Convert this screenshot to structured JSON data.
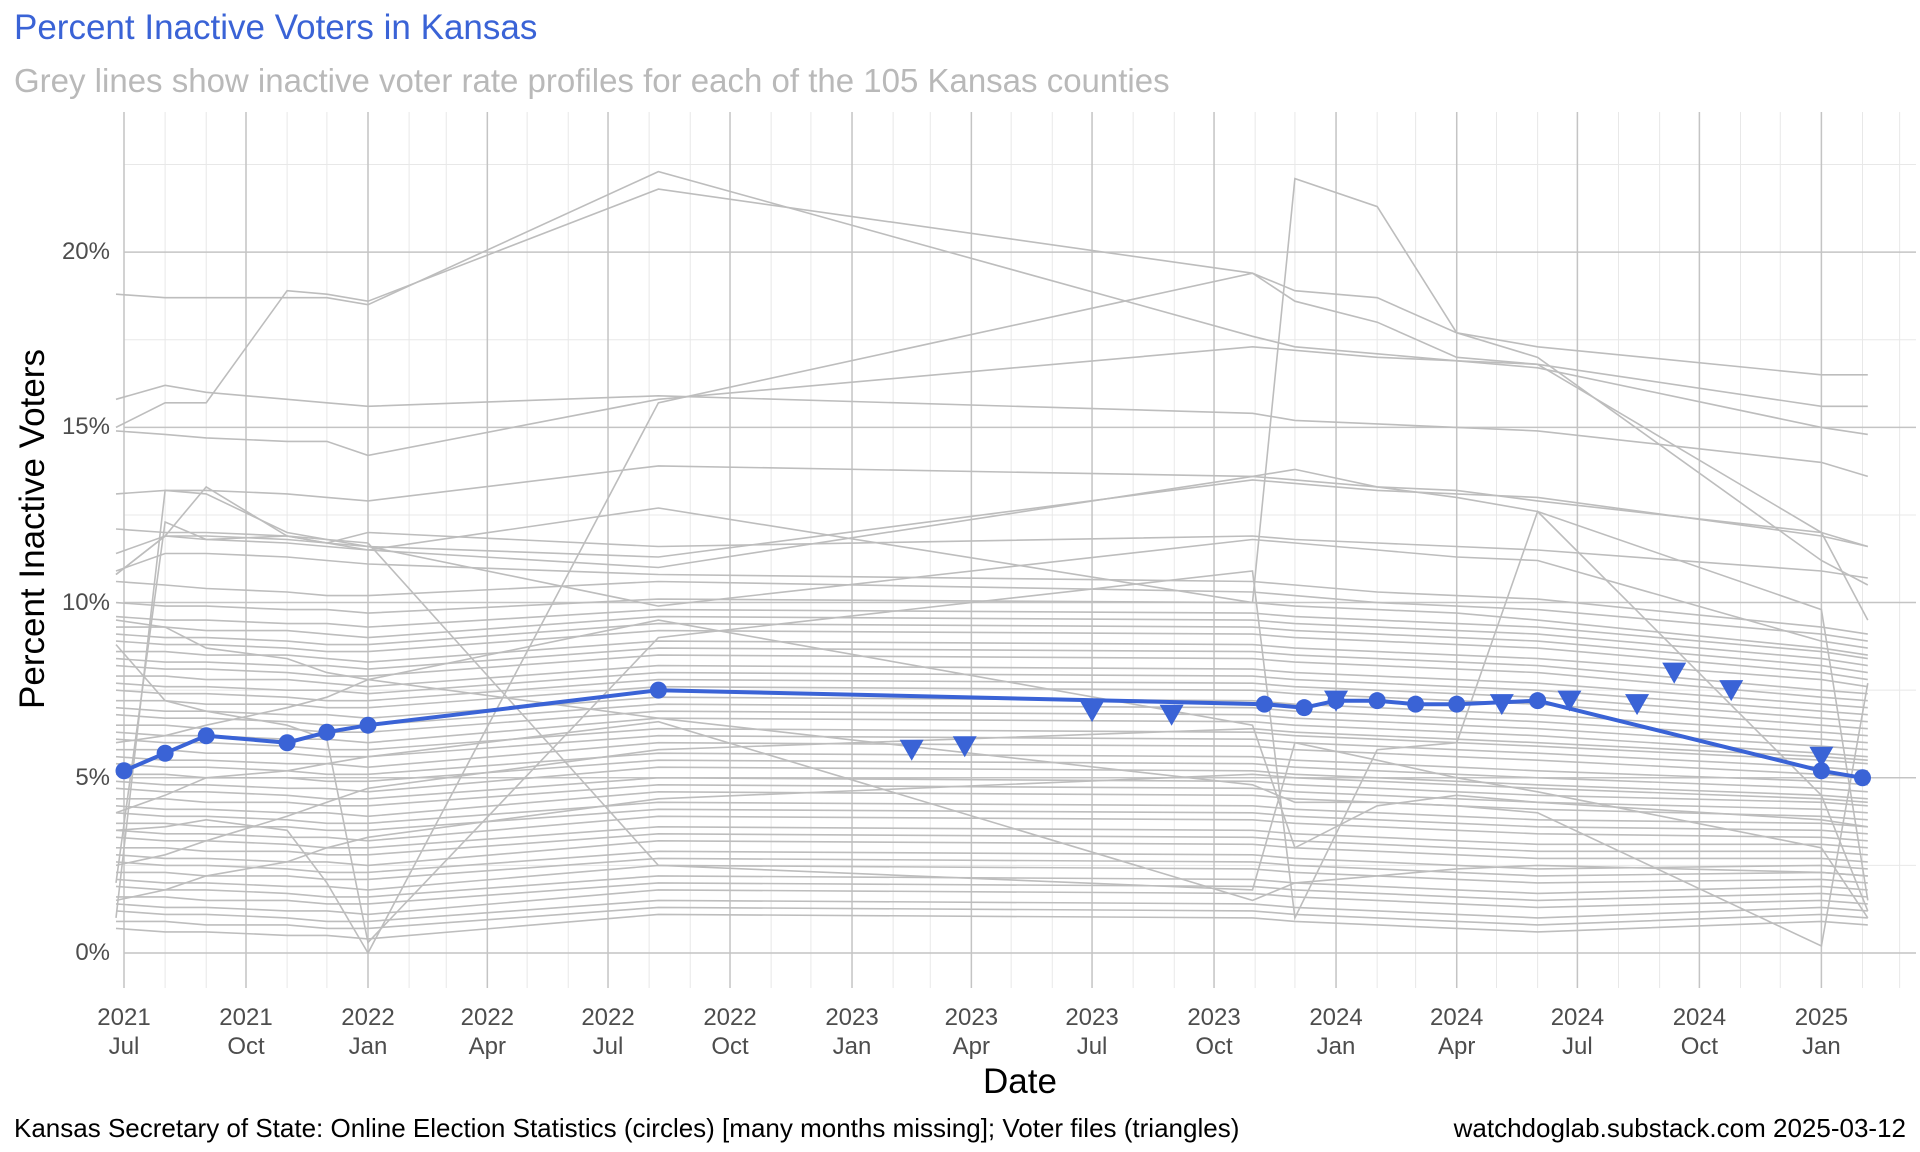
{
  "colors": {
    "accent": "#3A63D6",
    "county_lines": "#BDBDBD",
    "subtitle": "#B9B9B9",
    "grid_major": "#C4C4C4",
    "grid_minor": "#E8E8E8"
  },
  "chart_data": {
    "type": "line",
    "title": "Percent Inactive Voters in Kansas",
    "subtitle": "Grey lines show inactive voter rate profiles for each of the 105 Kansas counties",
    "xlabel": "Date",
    "ylabel": "Percent Inactive Voters",
    "caption": "Kansas Secretary of State: Online Election Statistics (circles) [many months missing]; Voter files (triangles)",
    "caption_right": "watchdoglab.substack.com 2025-03-12",
    "xlim": [
      "2021-07-01",
      "2025-03-15"
    ],
    "ylim": [
      -1,
      24
    ],
    "grid": true,
    "y_ticks": [
      {
        "value": 0,
        "label": "0%"
      },
      {
        "value": 5,
        "label": "5%"
      },
      {
        "value": 10,
        "label": "10%"
      },
      {
        "value": 15,
        "label": "15%"
      },
      {
        "value": 20,
        "label": "20%"
      }
    ],
    "x_ticks": [
      {
        "date": "2021-07-01",
        "year": "2021",
        "month": "Jul"
      },
      {
        "date": "2021-10-01",
        "year": "2021",
        "month": "Oct"
      },
      {
        "date": "2022-01-01",
        "year": "2022",
        "month": "Jan"
      },
      {
        "date": "2022-04-01",
        "year": "2022",
        "month": "Apr"
      },
      {
        "date": "2022-07-01",
        "year": "2022",
        "month": "Jul"
      },
      {
        "date": "2022-10-01",
        "year": "2022",
        "month": "Oct"
      },
      {
        "date": "2023-01-01",
        "year": "2023",
        "month": "Jan"
      },
      {
        "date": "2023-04-01",
        "year": "2023",
        "month": "Apr"
      },
      {
        "date": "2023-07-01",
        "year": "2023",
        "month": "Jul"
      },
      {
        "date": "2023-10-01",
        "year": "2023",
        "month": "Oct"
      },
      {
        "date": "2024-01-01",
        "year": "2024",
        "month": "Jan"
      },
      {
        "date": "2024-04-01",
        "year": "2024",
        "month": "Apr"
      },
      {
        "date": "2024-07-01",
        "year": "2024",
        "month": "Jul"
      },
      {
        "date": "2024-10-01",
        "year": "2024",
        "month": "Oct"
      },
      {
        "date": "2025-01-01",
        "year": "2025",
        "month": "Jan"
      }
    ],
    "state_circles": [
      {
        "date": "2021-07-01",
        "value": 5.2
      },
      {
        "date": "2021-08-01",
        "value": 5.7
      },
      {
        "date": "2021-09-01",
        "value": 6.2
      },
      {
        "date": "2021-11-01",
        "value": 6.0
      },
      {
        "date": "2021-12-01",
        "value": 6.3
      },
      {
        "date": "2022-01-01",
        "value": 6.5
      },
      {
        "date": "2022-08-08",
        "value": 7.5
      },
      {
        "date": "2023-11-08",
        "value": 7.1
      },
      {
        "date": "2023-12-08",
        "value": 7.0
      },
      {
        "date": "2024-01-01",
        "value": 7.2
      },
      {
        "date": "2024-02-01",
        "value": 7.2
      },
      {
        "date": "2024-03-01",
        "value": 7.1
      },
      {
        "date": "2024-04-01",
        "value": 7.1
      },
      {
        "date": "2024-06-01",
        "value": 7.2
      },
      {
        "date": "2025-01-01",
        "value": 5.2
      },
      {
        "date": "2025-02-01",
        "value": 5.0
      }
    ],
    "voter_file_triangles": [
      {
        "date": "2023-02-15",
        "value": 5.8
      },
      {
        "date": "2023-03-27",
        "value": 5.9
      },
      {
        "date": "2023-07-01",
        "value": 6.9
      },
      {
        "date": "2023-08-30",
        "value": 6.8
      },
      {
        "date": "2024-01-01",
        "value": 7.2
      },
      {
        "date": "2024-05-05",
        "value": 7.1
      },
      {
        "date": "2024-06-25",
        "value": 7.2
      },
      {
        "date": "2024-08-15",
        "value": 7.1
      },
      {
        "date": "2024-09-12",
        "value": 8.0
      },
      {
        "date": "2024-10-25",
        "value": 7.5
      },
      {
        "date": "2025-01-01",
        "value": 5.6
      }
    ],
    "county_profile_dates": [
      "2021-06-25",
      "2021-08-01",
      "2021-09-01",
      "2021-11-01",
      "2021-12-01",
      "2022-01-01",
      "2022-08-08",
      "2023-10-30",
      "2023-12-01",
      "2024-02-01",
      "2024-04-01",
      "2024-06-01",
      "2025-01-01",
      "2025-02-05"
    ],
    "county_profiles": [
      [
        18.8,
        18.7,
        18.7,
        18.7,
        18.7,
        18.5,
        22.3,
        17.6,
        17.3,
        17.1,
        16.9,
        16.7,
        15.0,
        14.8
      ],
      [
        15.8,
        16.2,
        16.0,
        15.8,
        15.7,
        15.6,
        15.9,
        15.4,
        15.2,
        15.1,
        15.0,
        14.9,
        14.0,
        13.6
      ],
      [
        15.0,
        15.7,
        15.7,
        18.9,
        18.8,
        18.6,
        21.8,
        19.4,
        18.9,
        18.7,
        17.7,
        17.3,
        16.5,
        16.5
      ],
      [
        14.9,
        14.8,
        14.7,
        14.6,
        14.6,
        14.2,
        15.8,
        17.3,
        17.2,
        17.0,
        16.9,
        16.8,
        15.6,
        15.6
      ],
      [
        13.1,
        13.2,
        13.2,
        13.1,
        13.0,
        12.9,
        13.9,
        13.6,
        13.5,
        13.3,
        13.2,
        12.9,
        12.0,
        11.6
      ],
      [
        12.1,
        12.0,
        12.0,
        11.9,
        11.8,
        11.6,
        11.3,
        13.5,
        13.4,
        13.2,
        13.1,
        13.0,
        11.9,
        11.6
      ],
      [
        11.4,
        11.9,
        11.8,
        11.7,
        11.6,
        11.5,
        12.7,
        10.0,
        22.1,
        21.3,
        17.7,
        17.0,
        11.2,
        10.5
      ],
      [
        10.9,
        11.4,
        11.4,
        11.3,
        11.2,
        11.1,
        10.8,
        10.6,
        10.5,
        10.3,
        10.2,
        10.1,
        9.3,
        9.1
      ],
      [
        10.8,
        11.9,
        13.3,
        11.9,
        11.7,
        11.6,
        9.9,
        11.8,
        11.7,
        11.5,
        11.3,
        11.2,
        8.9,
        8.7
      ],
      [
        10.6,
        10.5,
        10.4,
        10.3,
        10.2,
        10.2,
        10.6,
        10.3,
        10.2,
        10.0,
        9.9,
        9.8,
        9.1,
        8.9
      ],
      [
        10.0,
        9.9,
        9.9,
        9.8,
        9.8,
        9.7,
        10.1,
        10.0,
        9.9,
        9.8,
        9.7,
        9.5,
        8.7,
        8.5
      ],
      [
        9.6,
        9.5,
        9.5,
        9.4,
        9.4,
        9.3,
        9.8,
        9.7,
        9.6,
        9.5,
        9.4,
        9.3,
        8.6,
        8.4
      ],
      [
        9.3,
        9.3,
        9.2,
        9.2,
        9.1,
        9.0,
        9.6,
        9.5,
        9.4,
        9.3,
        9.2,
        9.1,
        8.4,
        8.2
      ],
      [
        9.1,
        9.0,
        9.0,
        8.9,
        8.8,
        8.8,
        9.4,
        9.3,
        9.2,
        9.1,
        9.0,
        8.9,
        8.2,
        8.0
      ],
      [
        8.9,
        8.8,
        8.8,
        8.7,
        8.6,
        8.6,
        9.2,
        9.1,
        9.0,
        8.9,
        8.8,
        8.7,
        8.0,
        7.8
      ],
      [
        8.6,
        8.6,
        8.5,
        8.5,
        8.4,
        8.3,
        8.9,
        8.8,
        8.7,
        8.6,
        8.5,
        8.4,
        7.8,
        7.6
      ],
      [
        8.4,
        8.3,
        8.3,
        8.2,
        8.2,
        8.1,
        8.7,
        8.6,
        8.5,
        8.4,
        8.3,
        8.2,
        7.5,
        7.4
      ],
      [
        8.2,
        8.1,
        8.1,
        8.0,
        7.9,
        7.9,
        8.5,
        8.4,
        8.3,
        8.2,
        8.1,
        8.0,
        7.3,
        7.2
      ],
      [
        7.9,
        7.9,
        7.8,
        7.8,
        7.7,
        7.6,
        8.2,
        8.1,
        8.0,
        7.9,
        7.8,
        7.7,
        7.1,
        7.0
      ],
      [
        7.7,
        7.6,
        7.6,
        7.5,
        7.5,
        7.4,
        8.0,
        7.9,
        7.8,
        7.7,
        7.6,
        7.5,
        6.9,
        6.8
      ],
      [
        7.5,
        7.4,
        7.4,
        7.3,
        7.2,
        7.2,
        7.8,
        7.7,
        7.6,
        7.5,
        7.4,
        7.3,
        6.7,
        6.6
      ],
      [
        7.2,
        7.2,
        7.1,
        7.1,
        7.0,
        7.0,
        7.6,
        7.5,
        7.4,
        7.3,
        7.2,
        7.1,
        6.5,
        6.4
      ],
      [
        7.0,
        6.9,
        6.9,
        6.8,
        6.8,
        6.7,
        7.3,
        7.2,
        7.1,
        7.0,
        6.9,
        6.8,
        6.3,
        6.2
      ],
      [
        6.8,
        6.7,
        6.7,
        6.6,
        6.5,
        6.5,
        7.1,
        7.0,
        6.9,
        6.8,
        6.7,
        6.6,
        6.1,
        6.0
      ],
      [
        6.5,
        6.5,
        6.4,
        6.4,
        6.3,
        6.3,
        6.9,
        6.8,
        6.7,
        6.6,
        6.5,
        6.4,
        5.9,
        5.8
      ],
      [
        6.3,
        6.2,
        6.2,
        6.1,
        6.1,
        6.0,
        6.7,
        6.6,
        6.5,
        6.4,
        6.3,
        6.2,
        5.7,
        5.6
      ],
      [
        6.1,
        6.0,
        6.0,
        5.9,
        5.8,
        5.8,
        6.4,
        6.3,
        6.2,
        6.1,
        6.0,
        5.9,
        5.5,
        5.4
      ],
      [
        5.8,
        5.8,
        5.7,
        5.7,
        5.6,
        5.6,
        6.2,
        6.1,
        6.0,
        5.9,
        5.8,
        5.7,
        5.3,
        5.2
      ],
      [
        5.6,
        5.5,
        5.5,
        5.4,
        5.4,
        5.3,
        6.0,
        5.9,
        5.8,
        5.7,
        5.6,
        5.5,
        5.1,
        5.0
      ],
      [
        5.4,
        5.3,
        5.3,
        5.2,
        5.1,
        5.1,
        5.7,
        5.6,
        5.5,
        5.4,
        5.3,
        5.2,
        4.9,
        4.8
      ],
      [
        5.1,
        5.1,
        5.0,
        5.0,
        4.9,
        4.9,
        5.5,
        5.4,
        5.3,
        5.2,
        5.1,
        5.0,
        4.7,
        4.6
      ],
      [
        4.9,
        4.8,
        4.8,
        4.7,
        4.7,
        4.6,
        5.3,
        5.2,
        5.1,
        5.0,
        4.9,
        4.8,
        4.5,
        4.4
      ],
      [
        4.7,
        4.6,
        4.6,
        4.5,
        4.4,
        4.4,
        5.0,
        4.9,
        4.8,
        4.7,
        4.6,
        4.5,
        4.3,
        4.2
      ],
      [
        4.4,
        4.4,
        4.3,
        4.3,
        4.2,
        4.2,
        4.8,
        4.7,
        4.6,
        4.5,
        4.4,
        4.3,
        4.1,
        4.0
      ],
      [
        4.2,
        4.1,
        4.1,
        4.0,
        4.0,
        3.9,
        4.6,
        4.5,
        4.4,
        4.3,
        4.2,
        4.1,
        3.9,
        3.8
      ],
      [
        4.0,
        3.9,
        3.9,
        3.8,
        3.7,
        3.7,
        4.3,
        4.2,
        4.1,
        4.0,
        3.9,
        3.8,
        3.7,
        3.6
      ],
      [
        3.7,
        3.7,
        3.6,
        3.6,
        3.5,
        3.5,
        4.1,
        4.0,
        3.9,
        3.8,
        3.7,
        3.6,
        3.5,
        3.4
      ],
      [
        3.5,
        3.4,
        3.4,
        3.3,
        3.3,
        3.2,
        3.9,
        3.8,
        3.7,
        3.6,
        3.5,
        3.4,
        3.3,
        3.2
      ],
      [
        3.3,
        3.2,
        3.2,
        3.1,
        3.0,
        3.0,
        3.6,
        3.5,
        3.4,
        3.3,
        3.2,
        3.1,
        3.1,
        3.0
      ],
      [
        3.0,
        3.0,
        2.9,
        2.9,
        2.8,
        2.8,
        3.4,
        3.3,
        3.2,
        3.1,
        3.0,
        2.9,
        2.9,
        2.8
      ],
      [
        2.8,
        2.7,
        2.7,
        2.6,
        2.6,
        2.5,
        3.2,
        3.1,
        3.0,
        2.9,
        2.8,
        2.7,
        2.7,
        2.6
      ],
      [
        2.6,
        2.5,
        2.5,
        2.4,
        2.3,
        2.3,
        2.9,
        2.8,
        2.7,
        2.6,
        2.5,
        2.4,
        2.5,
        2.4
      ],
      [
        2.3,
        2.3,
        2.2,
        2.2,
        2.1,
        2.1,
        2.7,
        2.6,
        2.5,
        2.4,
        2.3,
        2.2,
        2.3,
        2.2
      ],
      [
        2.1,
        2.0,
        2.0,
        1.9,
        1.9,
        1.8,
        2.5,
        2.4,
        2.3,
        2.2,
        2.1,
        2.0,
        2.1,
        2.0
      ],
      [
        1.9,
        1.8,
        1.8,
        1.7,
        1.6,
        1.6,
        2.2,
        2.1,
        2.0,
        1.9,
        1.8,
        1.7,
        1.9,
        1.8
      ],
      [
        1.6,
        1.6,
        1.5,
        1.5,
        1.4,
        1.4,
        2.0,
        1.9,
        1.8,
        1.7,
        1.6,
        1.5,
        1.7,
        1.6
      ],
      [
        1.4,
        1.3,
        1.3,
        1.2,
        1.2,
        1.1,
        1.8,
        1.7,
        1.6,
        1.5,
        1.4,
        1.3,
        1.5,
        1.4
      ],
      [
        1.2,
        1.1,
        1.1,
        1.0,
        0.9,
        0.9,
        1.5,
        1.4,
        1.3,
        1.2,
        1.1,
        1.0,
        1.3,
        1.2
      ],
      [
        0.9,
        0.9,
        0.8,
        0.8,
        0.7,
        0.7,
        1.3,
        1.2,
        1.1,
        1.0,
        0.9,
        0.8,
        1.1,
        1.0
      ],
      [
        0.7,
        0.6,
        0.6,
        0.5,
        0.5,
        0.4,
        1.1,
        1.0,
        0.9,
        0.8,
        0.7,
        0.6,
        0.9,
        0.8
      ],
      [
        1.0,
        13.2,
        13.1,
        12.0,
        11.8,
        11.7,
        2.5,
        1.8,
        6.0,
        5.5,
        5.0,
        4.6,
        3.0,
        1.0
      ],
      [
        2.0,
        12.3,
        11.8,
        11.9,
        11.7,
        11.5,
        11.0,
        13.6,
        13.8,
        13.3,
        13.0,
        12.6,
        9.8,
        1.5
      ],
      [
        3.5,
        3.6,
        3.8,
        3.5,
        2.0,
        0.0,
        15.7,
        19.4,
        18.6,
        18.0,
        17.0,
        16.8,
        12.0,
        9.5
      ],
      [
        8.8,
        7.2,
        6.9,
        6.5,
        6.1,
        0.3,
        9.0,
        10.9,
        1.0,
        5.8,
        6.0,
        12.6,
        4.5,
        1.2
      ],
      [
        9.5,
        9.3,
        8.7,
        8.4,
        8.0,
        7.8,
        6.7,
        4.8,
        4.3,
        4.3,
        4.2,
        4.0,
        0.2,
        7.7
      ],
      [
        10.8,
        11.9,
        11.9,
        11.8,
        11.7,
        12.0,
        11.6,
        11.9,
        11.8,
        11.7,
        11.6,
        11.5,
        10.9,
        10.7
      ],
      [
        6.0,
        6.2,
        6.5,
        7.0,
        7.3,
        7.8,
        9.5,
        6.5,
        3.0,
        4.2,
        4.5,
        4.3,
        3.8,
        3.6
      ],
      [
        1.5,
        1.8,
        2.2,
        2.6,
        3.0,
        3.3,
        4.4,
        5.1,
        5.0,
        4.9,
        4.8,
        4.7,
        4.4,
        4.3
      ],
      [
        4.0,
        4.5,
        5.0,
        5.2,
        5.4,
        5.6,
        6.6,
        1.5,
        2.0,
        2.2,
        2.4,
        2.5,
        2.3,
        2.2
      ],
      [
        2.5,
        2.8,
        3.2,
        3.9,
        4.3,
        4.7,
        5.8,
        6.4,
        6.3,
        6.2,
        6.1,
        6.0,
        5.6,
        5.5
      ]
    ]
  }
}
